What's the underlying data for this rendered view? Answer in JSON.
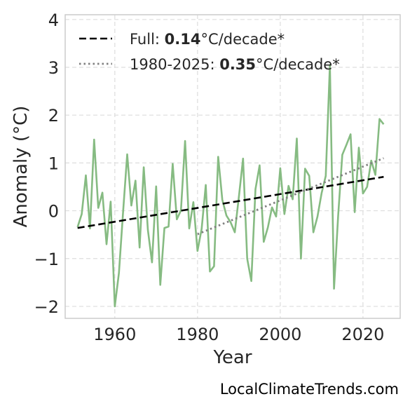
{
  "chart_data": {
    "type": "line",
    "xlabel": "Year",
    "ylabel": "Anomaly (°C)",
    "xlim": [
      1948,
      2029
    ],
    "ylim": [
      -2.25,
      4.1
    ],
    "xticks": [
      1960,
      1980,
      2000,
      2020
    ],
    "yticks": [
      -2,
      -1,
      0,
      1,
      2,
      3,
      4
    ],
    "ytick_labels": [
      "−2",
      "−1",
      "0",
      "1",
      "2",
      "3",
      "4"
    ],
    "grid": true,
    "legend_position": "top-left",
    "colors": {
      "observed": "#86bb82",
      "full_trend": "#000000",
      "recent_trend": "#808080",
      "grid": "#dddddd",
      "frame": "#cccccc"
    },
    "series": [
      {
        "style": "solid",
        "x": [
          1951,
          1952,
          1953,
          1954,
          1955,
          1956,
          1957,
          1958,
          1959,
          1960,
          1961,
          1962,
          1963,
          1964,
          1965,
          1966,
          1967,
          1968,
          1969,
          1970,
          1971,
          1972,
          1973,
          1974,
          1975,
          1976,
          1977,
          1978,
          1979,
          1980,
          1981,
          1982,
          1983,
          1984,
          1985,
          1986,
          1987,
          1988,
          1989,
          1990,
          1991,
          1992,
          1993,
          1994,
          1995,
          1996,
          1997,
          1998,
          1999,
          2000,
          2001,
          2002,
          2003,
          2004,
          2005,
          2006,
          2007,
          2008,
          2009,
          2010,
          2011,
          2012,
          2013,
          2014,
          2015,
          2016,
          2017,
          2018,
          2019,
          2020,
          2021,
          2022,
          2023,
          2024,
          2025
        ],
        "y": [
          -0.34,
          -0.07,
          0.74,
          -0.37,
          1.49,
          0.06,
          0.38,
          -0.7,
          0.19,
          -2.0,
          -1.3,
          -0.03,
          1.18,
          0.11,
          0.63,
          -0.77,
          0.91,
          -0.4,
          -1.08,
          0.51,
          -1.55,
          -0.36,
          -0.33,
          0.98,
          -0.18,
          0.01,
          1.46,
          -0.37,
          0.18,
          -0.84,
          -0.38,
          0.54,
          -1.27,
          -1.16,
          1.13,
          0.23,
          -0.1,
          -0.24,
          -0.45,
          0.3,
          1.09,
          -1.0,
          -1.47,
          0.45,
          0.95,
          -0.65,
          -0.35,
          0.07,
          -0.12,
          0.89,
          -0.07,
          0.52,
          0.24,
          1.51,
          -1.0,
          0.88,
          0.73,
          -0.45,
          -0.12,
          0.37,
          0.73,
          3.05,
          -1.63,
          -0.1,
          1.17,
          1.38,
          1.6,
          -0.03,
          1.32,
          0.36,
          0.5,
          1.05,
          0.75,
          1.92,
          1.81
        ]
      },
      {
        "name": "Full: 0.14°C/decade*",
        "label_prefix": "Full: ",
        "label_value": "0.14",
        "label_suffix": "°C/decade*",
        "style": "dashed",
        "x": [
          1951,
          2025
        ],
        "y": [
          -0.36,
          0.71
        ]
      },
      {
        "name": "1980-2025: 0.35°C/decade*",
        "label_prefix": "1980-2025: ",
        "label_value": "0.35",
        "label_suffix": "°C/decade*",
        "style": "dotted",
        "x": [
          1980,
          2025
        ],
        "y": [
          -0.49,
          1.1
        ]
      }
    ]
  },
  "footer": {
    "source": "LocalClimateTrends.com"
  }
}
